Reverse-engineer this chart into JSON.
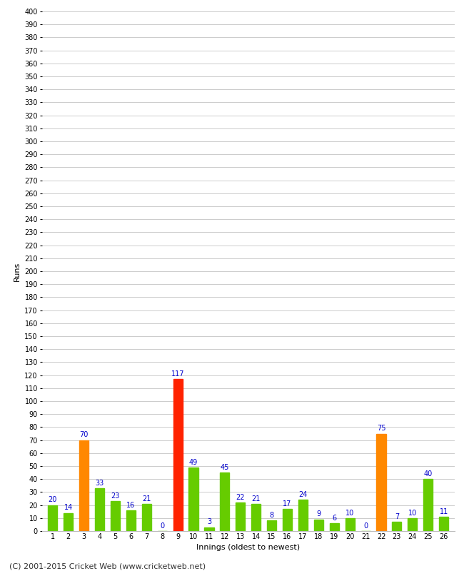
{
  "xlabel": "Innings (oldest to newest)",
  "ylabel": "Runs",
  "innings": [
    1,
    2,
    3,
    4,
    5,
    6,
    7,
    8,
    9,
    10,
    11,
    12,
    13,
    14,
    15,
    16,
    17,
    18,
    19,
    20,
    21,
    22,
    23,
    24,
    25,
    26
  ],
  "values": [
    20,
    14,
    70,
    33,
    23,
    16,
    21,
    0,
    117,
    49,
    3,
    45,
    22,
    21,
    8,
    17,
    24,
    9,
    6,
    10,
    0,
    75,
    7,
    10,
    40,
    11
  ],
  "colors": [
    "#66cc00",
    "#66cc00",
    "#ff8800",
    "#66cc00",
    "#66cc00",
    "#66cc00",
    "#66cc00",
    "#66cc00",
    "#ff2200",
    "#66cc00",
    "#66cc00",
    "#66cc00",
    "#66cc00",
    "#66cc00",
    "#66cc00",
    "#66cc00",
    "#66cc00",
    "#66cc00",
    "#66cc00",
    "#66cc00",
    "#66cc00",
    "#ff8800",
    "#66cc00",
    "#66cc00",
    "#66cc00",
    "#66cc00"
  ],
  "ylim": [
    0,
    400
  ],
  "ytick_step": 10,
  "label_color": "#0000cc",
  "background_color": "#ffffff",
  "grid_color": "#cccccc",
  "footer": "(C) 2001-2015 Cricket Web (www.cricketweb.net)",
  "ylabel_fontsize": 8,
  "xlabel_fontsize": 8,
  "tick_fontsize": 7,
  "bar_label_fontsize": 7,
  "footer_fontsize": 8,
  "bar_width": 0.6
}
